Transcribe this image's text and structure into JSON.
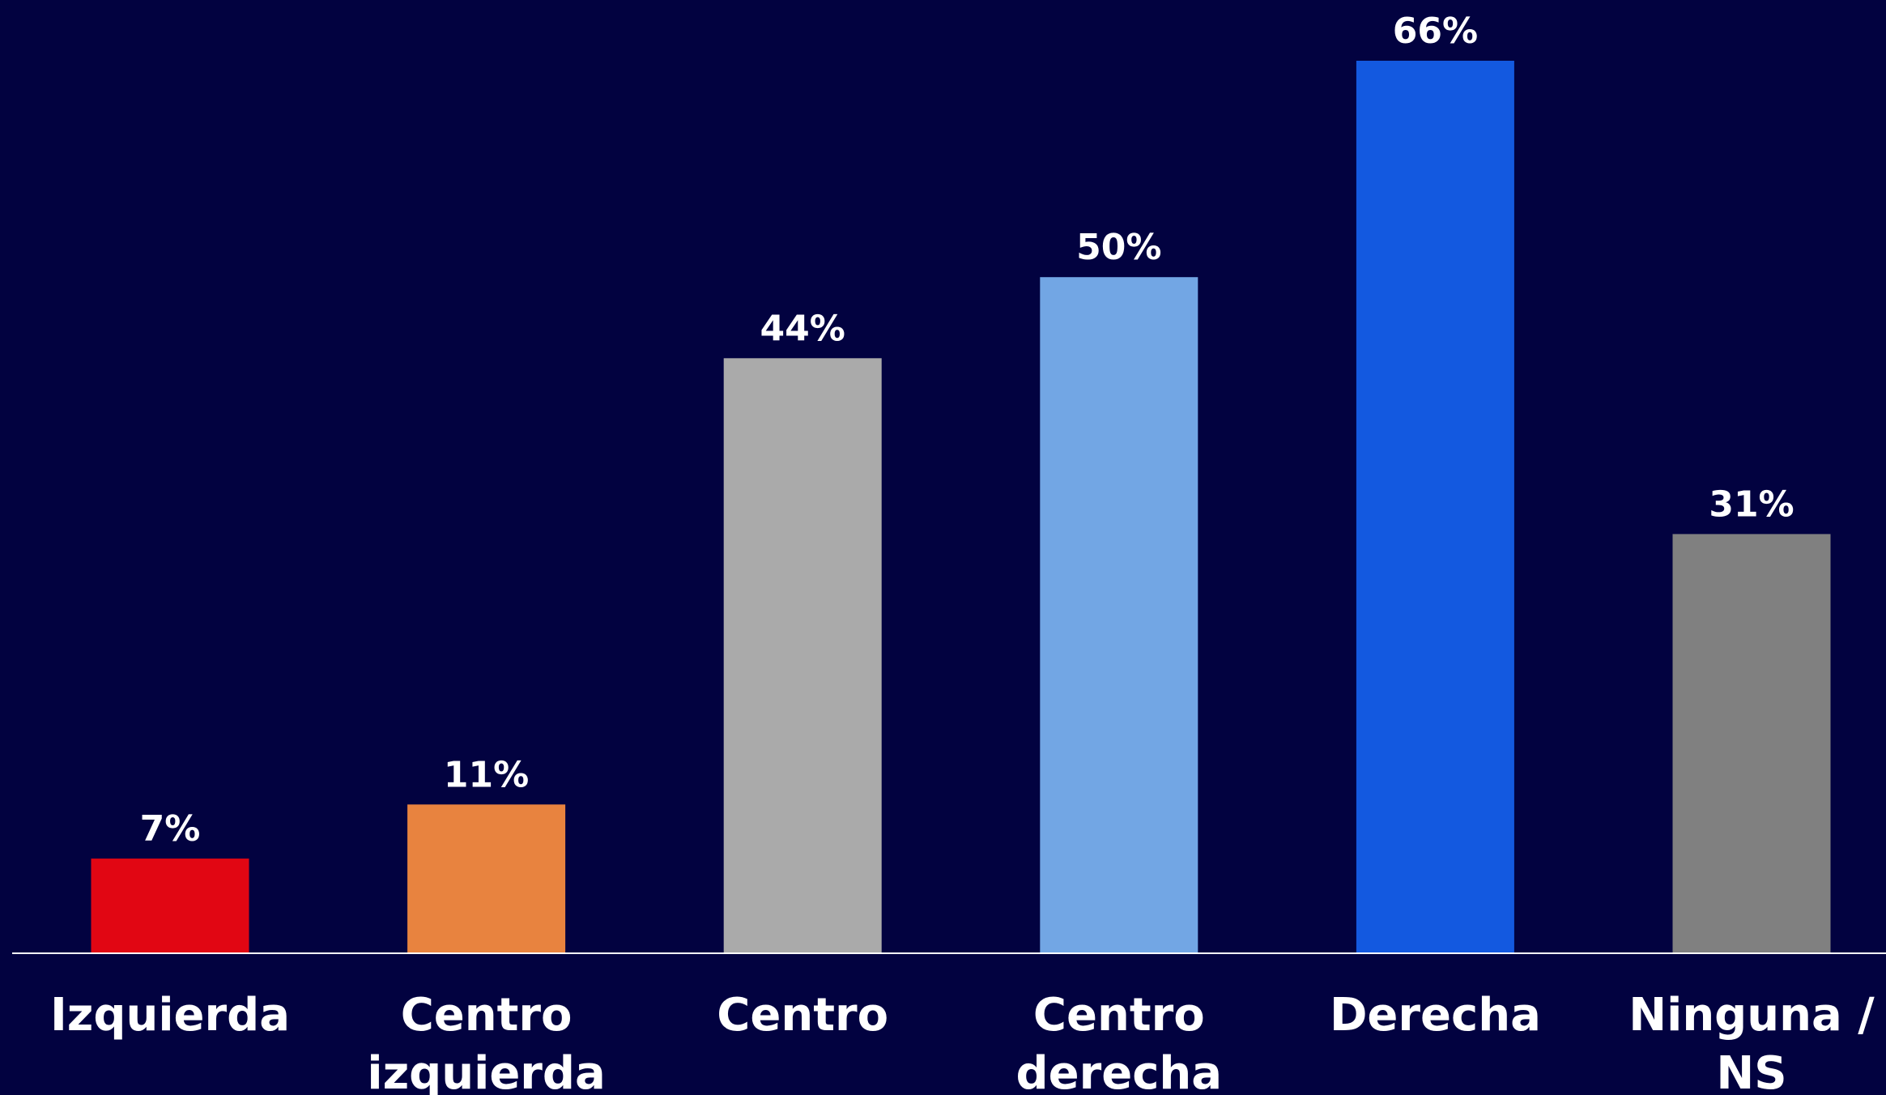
{
  "chart_data": {
    "type": "bar",
    "categories": [
      [
        "Izquierda"
      ],
      [
        "Centro",
        "izquierda"
      ],
      [
        "Centro"
      ],
      [
        "Centro",
        "derecha"
      ],
      [
        "Derecha"
      ],
      [
        "Ninguna /",
        "NS"
      ]
    ],
    "values": [
      7,
      11,
      44,
      50,
      66,
      31
    ],
    "value_labels": [
      "7%",
      "11%",
      "44%",
      "50%",
      "66%",
      "31%"
    ],
    "colors": [
      "#e10613",
      "#e8833f",
      "#aaaaaa",
      "#72a6e4",
      "#1359e0",
      "#808080"
    ],
    "ylim": [
      0,
      66
    ],
    "grid": false,
    "title": "",
    "xlabel": "",
    "ylabel": ""
  },
  "style": {
    "background": "#020240",
    "axis_color": "#ffffff",
    "text_color": "#ffffff"
  }
}
